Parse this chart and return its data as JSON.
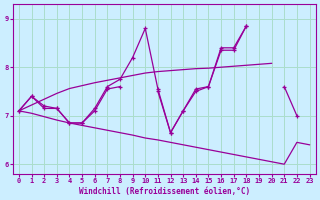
{
  "xlabel": "Windchill (Refroidissement éolien,°C)",
  "background_color": "#cceeff",
  "line_color": "#990099",
  "grid_color": "#aaddcc",
  "x_values": [
    0,
    1,
    2,
    3,
    4,
    5,
    6,
    7,
    8,
    9,
    10,
    11,
    12,
    13,
    14,
    15,
    16,
    17,
    18,
    19,
    20,
    21,
    22,
    23
  ],
  "series": {
    "line_zigzag1": [
      7.1,
      7.4,
      7.2,
      7.15,
      6.85,
      6.85,
      7.15,
      7.6,
      7.75,
      8.2,
      8.8,
      7.55,
      6.65,
      7.1,
      7.55,
      7.6,
      8.4,
      8.4,
      8.85,
      null,
      null,
      7.6,
      7.0,
      null
    ],
    "line_zigzag2": [
      7.1,
      7.4,
      7.15,
      7.15,
      6.85,
      6.85,
      7.1,
      7.55,
      7.6,
      null,
      null,
      7.5,
      6.65,
      7.1,
      7.5,
      7.6,
      8.35,
      8.35,
      8.85,
      null,
      null,
      null,
      null,
      null
    ],
    "line_trend_up": [
      7.1,
      7.22,
      7.34,
      7.46,
      7.56,
      7.62,
      7.68,
      7.73,
      7.78,
      7.83,
      7.88,
      7.91,
      7.93,
      7.95,
      7.97,
      7.98,
      8.0,
      8.02,
      8.04,
      8.06,
      8.08,
      null,
      null,
      null
    ],
    "line_trend_down": [
      7.1,
      7.05,
      6.98,
      6.91,
      6.85,
      6.8,
      6.75,
      6.7,
      6.65,
      6.6,
      6.54,
      6.5,
      6.45,
      6.4,
      6.35,
      6.3,
      6.25,
      6.2,
      6.15,
      6.1,
      6.05,
      6.0,
      6.45,
      6.4
    ]
  },
  "ylim": [
    5.8,
    9.3
  ],
  "xlim": [
    -0.5,
    23.5
  ],
  "yticks": [
    6,
    7,
    8,
    9
  ],
  "xticks": [
    0,
    1,
    2,
    3,
    4,
    5,
    6,
    7,
    8,
    9,
    10,
    11,
    12,
    13,
    14,
    15,
    16,
    17,
    18,
    19,
    20,
    21,
    22,
    23
  ]
}
